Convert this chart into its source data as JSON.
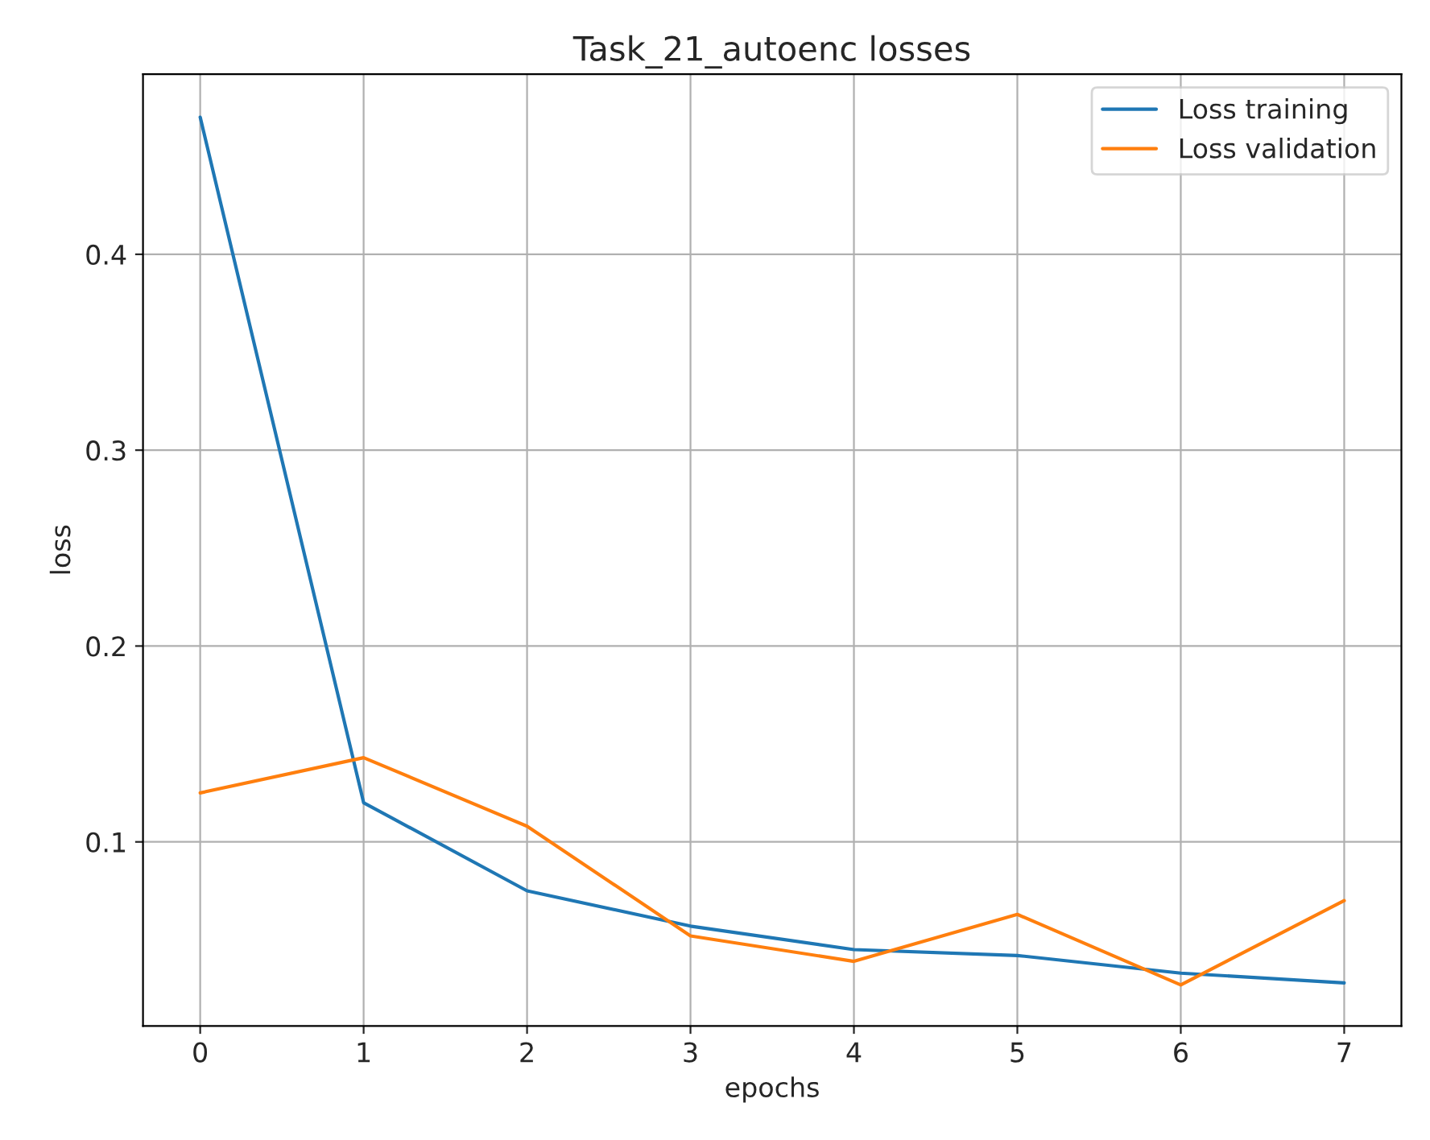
{
  "chart_data": {
    "type": "line",
    "title": "Task_21_autoenc losses",
    "xlabel": "epochs",
    "ylabel": "loss",
    "x": [
      0,
      1,
      2,
      3,
      4,
      5,
      6,
      7
    ],
    "series": [
      {
        "name": "Loss training",
        "color": "#1f77b4",
        "values": [
          0.47,
          0.12,
          0.075,
          0.057,
          0.045,
          0.042,
          0.033,
          0.028
        ]
      },
      {
        "name": "Loss validation",
        "color": "#ff7f0e",
        "values": [
          0.125,
          0.143,
          0.108,
          0.052,
          0.039,
          0.063,
          0.027,
          0.07
        ]
      }
    ],
    "xlim": [
      -0.35,
      7.35
    ],
    "ylim": [
      0.006,
      0.492
    ],
    "xticks": [
      0,
      1,
      2,
      3,
      4,
      5,
      6,
      7
    ],
    "yticks": [
      0.1,
      0.2,
      0.3,
      0.4
    ],
    "grid": true,
    "legend": "top right",
    "marker": "none",
    "line_style": "solid"
  }
}
